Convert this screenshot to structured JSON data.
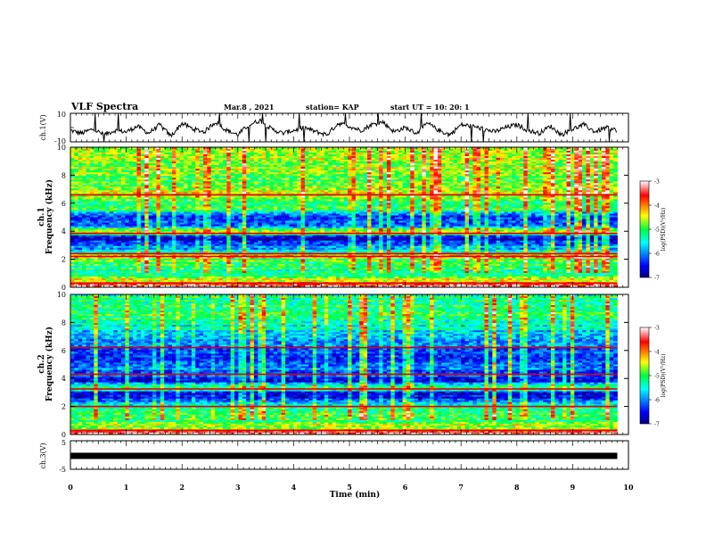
{
  "header": {
    "title": "VLF Spectra",
    "date": "Mar.8 , 2021",
    "station": "station= KAP",
    "start": "start UT = 10: 20: 1"
  },
  "chart_data": [
    {
      "type": "line",
      "panel": "ch1-waveform",
      "ylabel": "ch.1(V)",
      "ylim": [
        -10,
        10
      ],
      "yticks": [
        "10",
        "-10"
      ],
      "xlim": [
        0,
        9.8
      ],
      "series": [
        {
          "color": "#000000",
          "x": [
            0,
            0.2,
            0.4,
            0.6,
            0.8,
            1.0,
            1.2,
            1.4,
            1.6,
            1.8,
            2.0,
            2.2,
            2.4,
            2.6,
            2.8,
            3.0,
            3.2,
            3.4,
            3.6,
            3.8,
            4.0,
            4.2,
            4.4,
            4.6,
            4.8,
            5.0,
            5.2,
            5.4,
            5.6,
            5.8,
            6.0,
            6.2,
            6.4,
            6.6,
            6.8,
            7.0,
            7.2,
            7.4,
            7.6,
            7.8,
            8.0,
            8.2,
            8.4,
            8.6,
            8.8,
            9.0,
            9.2,
            9.4,
            9.6,
            9.8
          ],
          "y": [
            -2,
            -4,
            -1,
            -5,
            -2,
            -3,
            1,
            -4,
            2,
            -6,
            3,
            -1,
            -3,
            4,
            -2,
            -5,
            2,
            5,
            -1,
            -4,
            -2,
            0,
            -3,
            -5,
            3,
            1,
            -2,
            2,
            4,
            -3,
            0,
            -4,
            3,
            -2,
            -5,
            2,
            1,
            -1,
            -3,
            0,
            2,
            -2,
            -4,
            1,
            -5,
            -1,
            2,
            -3,
            0,
            -2
          ]
        }
      ]
    },
    {
      "type": "heatmap",
      "panel": "ch1-spectrogram",
      "ylabel": "ch.1",
      "ylabel2": "Frequency (kHz)",
      "ylim": [
        0,
        10
      ],
      "yticks": [
        0,
        2,
        4,
        6,
        8,
        10
      ],
      "xlim": [
        0,
        9.8
      ],
      "colorbar": {
        "range": [
          -7,
          -3
        ],
        "ticks": [
          "-3",
          "-4",
          "-5",
          "-6",
          "-7"
        ],
        "label": "log(PSD)(V²/Hz)"
      },
      "freq_profile_log_psd": [
        {
          "f": 0.0,
          "v": -3.0
        },
        {
          "f": 0.3,
          "v": -4.2
        },
        {
          "f": 1.0,
          "v": -5.2
        },
        {
          "f": 2.0,
          "v": -5.0
        },
        {
          "f": 2.2,
          "v": -4.0
        },
        {
          "f": 2.6,
          "v": -5.6
        },
        {
          "f": 3.2,
          "v": -6.4
        },
        {
          "f": 3.6,
          "v": -6.8
        },
        {
          "f": 3.9,
          "v": -4.2
        },
        {
          "f": 4.4,
          "v": -6.0
        },
        {
          "f": 5.0,
          "v": -6.3
        },
        {
          "f": 5.6,
          "v": -5.2
        },
        {
          "f": 6.3,
          "v": -5.0
        },
        {
          "f": 6.8,
          "v": -4.4
        },
        {
          "f": 7.5,
          "v": -5.0
        },
        {
          "f": 8.5,
          "v": -4.8
        },
        {
          "f": 10.0,
          "v": -4.6
        }
      ],
      "horizontal_lines_khz": [
        0.3,
        2.2,
        2.4,
        3.85,
        6.6
      ]
    },
    {
      "type": "heatmap",
      "panel": "ch2-spectrogram",
      "ylabel": "ch.2",
      "ylabel2": "Frequency (kHz)",
      "ylim": [
        0,
        10
      ],
      "yticks": [
        0,
        2,
        4,
        6,
        8,
        10
      ],
      "xlim": [
        0,
        9.8
      ],
      "colorbar": {
        "range": [
          -7,
          -3
        ],
        "ticks": [
          "-3",
          "-4",
          "-5",
          "-6",
          "-7"
        ],
        "label": "log(PSD)(V²/Hz)"
      },
      "freq_profile_log_psd": [
        {
          "f": 0.0,
          "v": -3.0
        },
        {
          "f": 0.3,
          "v": -4.4
        },
        {
          "f": 1.0,
          "v": -5.0
        },
        {
          "f": 2.0,
          "v": -5.2
        },
        {
          "f": 2.4,
          "v": -6.2
        },
        {
          "f": 3.0,
          "v": -6.7
        },
        {
          "f": 3.3,
          "v": -4.6
        },
        {
          "f": 3.8,
          "v": -6.6
        },
        {
          "f": 4.6,
          "v": -6.0
        },
        {
          "f": 5.4,
          "v": -6.5
        },
        {
          "f": 6.2,
          "v": -6.2
        },
        {
          "f": 7.0,
          "v": -6.0
        },
        {
          "f": 7.8,
          "v": -5.4
        },
        {
          "f": 8.6,
          "v": -5.0
        },
        {
          "f": 10.0,
          "v": -5.2
        }
      ],
      "horizontal_lines_khz": [
        0.3,
        2.0,
        3.25,
        4.3,
        6.2
      ]
    },
    {
      "type": "line",
      "panel": "ch3-waveform",
      "ylabel": "ch.3(V)",
      "ylim": [
        -5,
        5
      ],
      "yticks": [
        "5",
        "-5"
      ],
      "xlim": [
        0,
        9.8
      ],
      "series": [
        {
          "color": "#000000",
          "x": [
            0,
            9.8
          ],
          "y": [
            -0.3,
            -0.3
          ]
        }
      ]
    }
  ],
  "xaxis": {
    "label": "Time (min)",
    "ticks": [
      "0",
      "1",
      "2",
      "3",
      "4",
      "5",
      "6",
      "7",
      "8",
      "9",
      "10"
    ],
    "range": [
      0,
      10
    ]
  }
}
